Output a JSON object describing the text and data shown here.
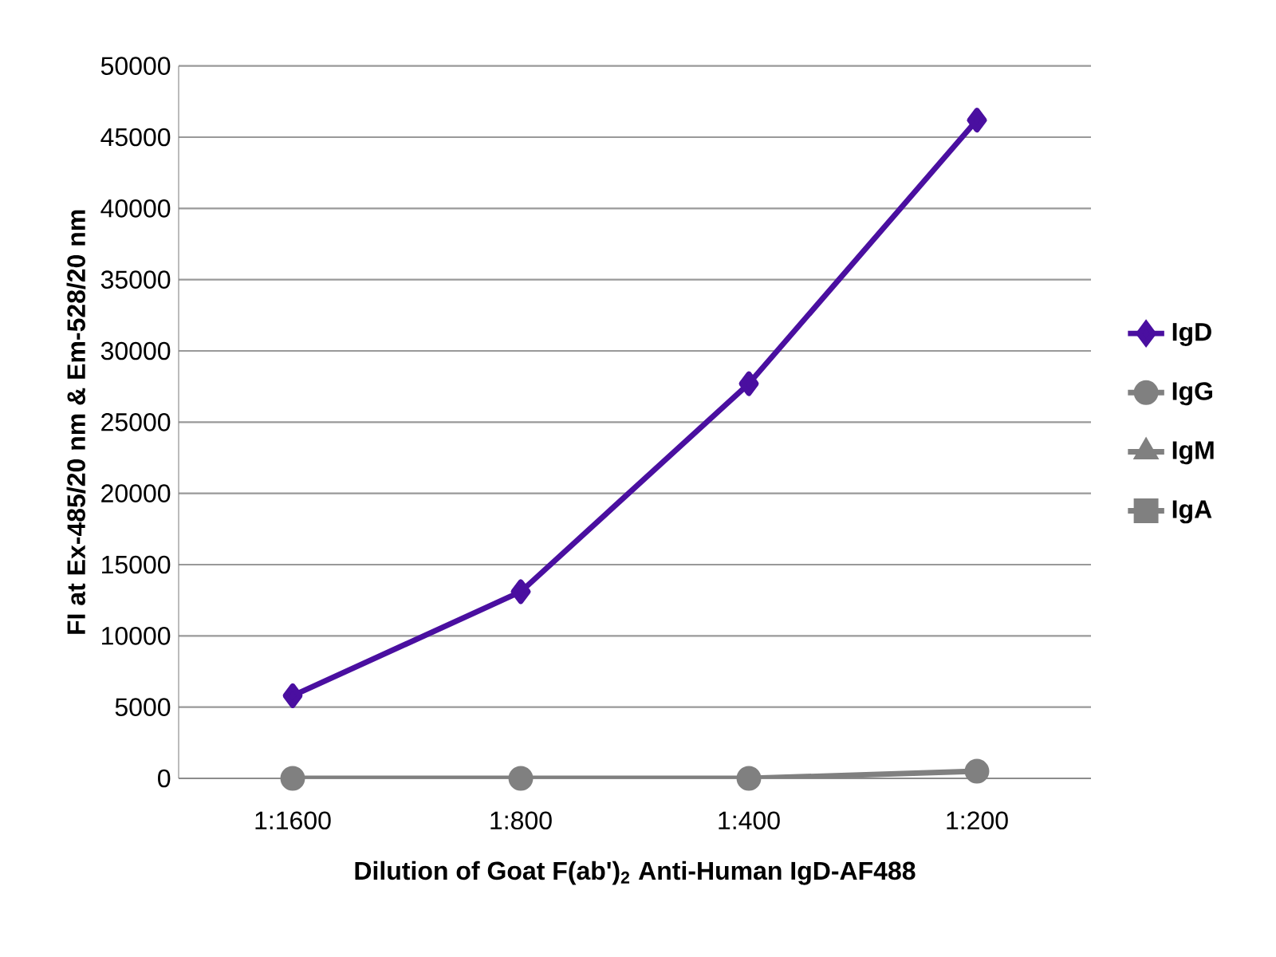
{
  "chart_data": {
    "type": "line",
    "xlabel": "Dilution of Goat F(ab')$_{2}$ Anti-Human IgD-AF488",
    "ylabel": "FI at Ex-485/20 nm & Em-528/20 nm",
    "categories": [
      "1:1600",
      "1:800",
      "1:400",
      "1:200"
    ],
    "series": [
      {
        "name": "IgD",
        "color": "#4a0fa0",
        "marker": "diamond",
        "values": [
          5800,
          13100,
          27700,
          46200
        ]
      },
      {
        "name": "IgG",
        "color": "#808080",
        "marker": "circle",
        "values": [
          0,
          0,
          0,
          500
        ]
      },
      {
        "name": "IgM",
        "color": "#808080",
        "marker": "triangle",
        "values": [
          null,
          null,
          null,
          null
        ]
      },
      {
        "name": "IgA",
        "color": "#808080",
        "marker": "square",
        "values": [
          null,
          null,
          null,
          null
        ]
      }
    ],
    "ylim": [
      0,
      50000
    ],
    "yticks": [
      0,
      5000,
      10000,
      15000,
      20000,
      25000,
      30000,
      35000,
      40000,
      45000,
      50000
    ],
    "grid": "y",
    "legend": "right",
    "line_style": "solid"
  }
}
